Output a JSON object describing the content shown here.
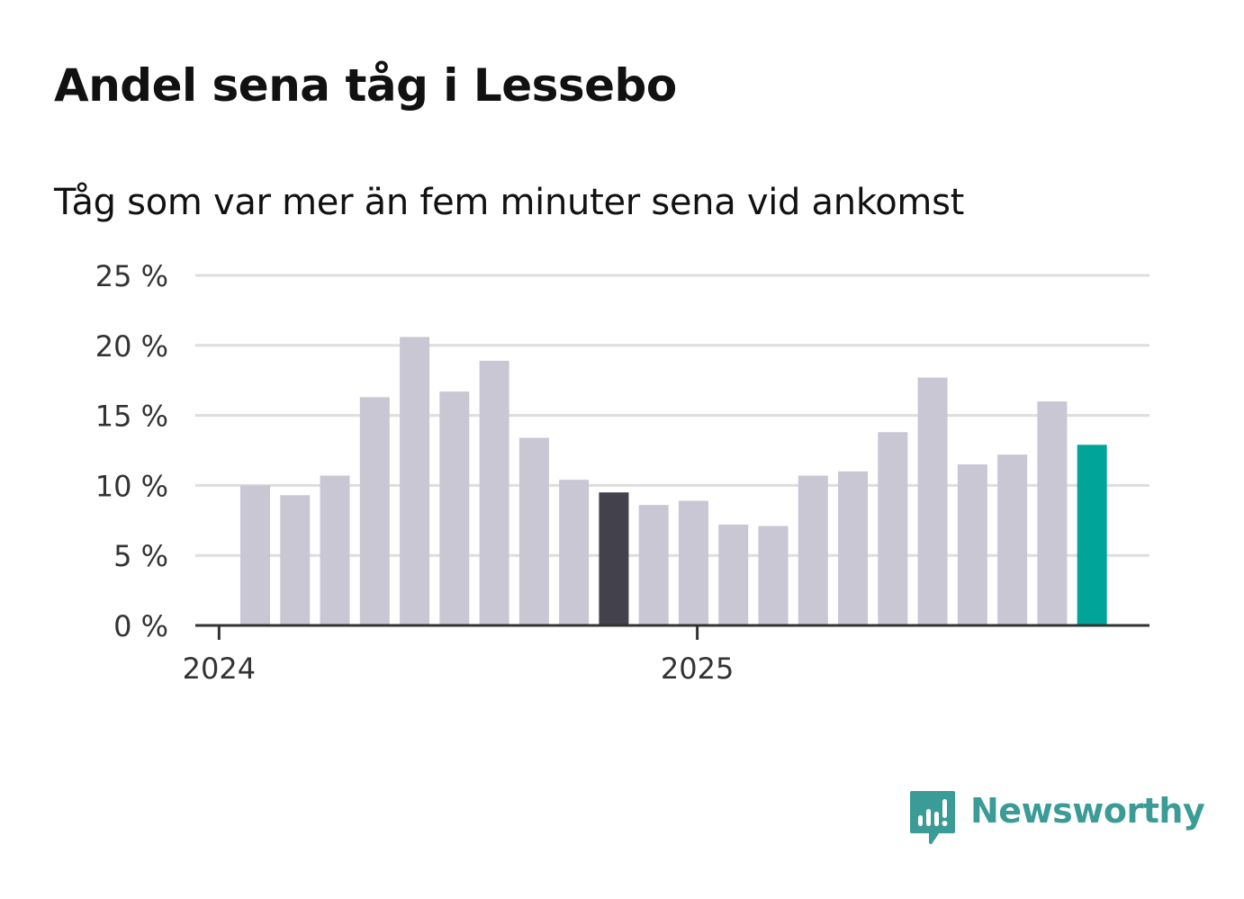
{
  "header": {
    "title": "Andel sena tåg i Lessebo",
    "subtitle": "Tåg som var mer än fem minuter sena vid ankomst"
  },
  "brand": {
    "name": "Newsworthy",
    "icon": "newsworthy-logo-icon",
    "color": "#3b9b96"
  },
  "colors": {
    "bar_default": "#c8c7d3",
    "bar_highlight_dark": "#42414c",
    "bar_highlight_current": "#00a499",
    "gridline": "#dedede",
    "axis": "#333333"
  },
  "chart_data": {
    "type": "bar",
    "title": "Andel sena tåg i Lessebo",
    "subtitle": "Tåg som var mer än fem minuter sena vid ankomst",
    "xlabel": "",
    "ylabel": "",
    "ylim": [
      0,
      25
    ],
    "y_ticks": [
      0,
      5,
      10,
      15,
      20,
      25
    ],
    "y_tick_labels": [
      "0 %",
      "5 %",
      "10 %",
      "15 %",
      "20 %",
      "25 %"
    ],
    "x_tick_labels": [
      {
        "label": "2024",
        "before_bar_index": 0
      },
      {
        "label": "2025",
        "before_bar_index": 12
      }
    ],
    "grid": true,
    "categories": [
      "2024-01",
      "2024-02",
      "2024-03",
      "2024-04",
      "2024-05",
      "2024-06",
      "2024-07",
      "2024-08",
      "2024-09",
      "2024-10",
      "2024-11",
      "2024-12",
      "2025-01",
      "2025-02",
      "2025-03",
      "2025-04",
      "2025-05",
      "2025-06",
      "2025-07",
      "2025-08",
      "2025-09",
      "2025-10"
    ],
    "values": [
      10.0,
      9.3,
      10.7,
      16.3,
      20.6,
      16.7,
      18.9,
      13.4,
      10.4,
      9.5,
      8.6,
      8.9,
      7.2,
      7.1,
      10.7,
      11.0,
      13.8,
      17.7,
      11.5,
      12.2,
      16.0,
      12.9
    ],
    "highlight": [
      {
        "index": 9,
        "color": "#42414c"
      },
      {
        "index": 21,
        "color": "#00a499"
      }
    ]
  }
}
